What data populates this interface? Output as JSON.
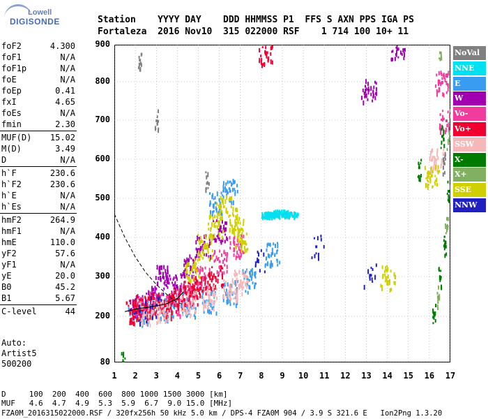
{
  "logo": {
    "line1": "Lowell",
    "line2": "DIGISONDE"
  },
  "header": {
    "labels": "Station    YYYY DAY    DDD HHMMSS P1  FFS S AXN PPS IGA PS",
    "values": "Fortaleza  2016 Nov10  315 022000 RSF    1 714 100 10+ 11"
  },
  "params": {
    "g1": [
      {
        "k": "foF2",
        "v": "4.300"
      },
      {
        "k": "foF1",
        "v": "N/A"
      },
      {
        "k": "foF1p",
        "v": "N/A"
      },
      {
        "k": "foE",
        "v": "N/A"
      },
      {
        "k": "foEp",
        "v": "0.41"
      },
      {
        "k": "fxI",
        "v": "4.65"
      },
      {
        "k": "foEs",
        "v": "N/A"
      },
      {
        "k": "fmin",
        "v": "2.30"
      }
    ],
    "g2": [
      {
        "k": "MUF(D)",
        "v": "15.02"
      },
      {
        "k": "M(D)",
        "v": "3.49"
      },
      {
        "k": "D",
        "v": "N/A"
      }
    ],
    "g3": [
      {
        "k": "h`F",
        "v": "230.6"
      },
      {
        "k": "h`F2",
        "v": "230.6"
      },
      {
        "k": "h`E",
        "v": "N/A"
      },
      {
        "k": "h`Es",
        "v": "N/A"
      }
    ],
    "g4": [
      {
        "k": "hmF2",
        "v": "264.9"
      },
      {
        "k": "hmF1",
        "v": "N/A"
      },
      {
        "k": "hmE",
        "v": "110.0"
      },
      {
        "k": "yF2",
        "v": "57.6"
      },
      {
        "k": "yF1",
        "v": "N/A"
      },
      {
        "k": "yE",
        "v": "20.0"
      },
      {
        "k": "B0",
        "v": "45.2"
      },
      {
        "k": "B1",
        "v": "5.67"
      }
    ],
    "g5": [
      {
        "k": "C-level",
        "v": "44"
      }
    ]
  },
  "auto": {
    "line1": "Auto:",
    "line2": "Artist5",
    "line3": "500200"
  },
  "legend": [
    {
      "label": "NoVal",
      "color": "#808080"
    },
    {
      "label": "NNE",
      "color": "#00e0f0"
    },
    {
      "label": "E",
      "color": "#3a9cf0"
    },
    {
      "label": "W",
      "color": "#a000b0"
    },
    {
      "label": "Vo-",
      "color": "#f03c9c"
    },
    {
      "label": "Vo+",
      "color": "#f00030"
    },
    {
      "label": "SSW",
      "color": "#f4b8b8"
    },
    {
      "label": "X-",
      "color": "#007a00"
    },
    {
      "label": "X+",
      "color": "#80b060"
    },
    {
      "label": "SSE",
      "color": "#d0d000"
    },
    {
      "label": "NNW",
      "color": "#2020c0"
    }
  ],
  "bottom": {
    "line1": "D     100  200  400  600  800 1000 1500 3000 [km]",
    "line2": "MUF   4.6  4.7  4.9  5.3  5.9  6.7  9.0 15.0 [MHz]",
    "line3": "FZA0M_2016315022000.RSF / 320fx256h 50 kHz 5.0 km / DPS-4 FZA0M 904 / 3.9 S 321.6 E   Ion2Png 1.3.20"
  },
  "chart_data": {
    "type": "scatter",
    "title": "",
    "xlabel": "",
    "ylabel": "",
    "xlim": [
      1,
      17
    ],
    "ylim": [
      80,
      900
    ],
    "x_ticks": [
      "1",
      "2",
      "3",
      "4",
      "5",
      "6",
      "7",
      "8",
      "9",
      "10",
      "11",
      "12",
      "13",
      "14",
      "15",
      "16",
      "17"
    ],
    "y_ticks": [
      "80",
      "200",
      "300",
      "400",
      "500",
      "600",
      "700",
      "800",
      "900"
    ],
    "grid": "dotted",
    "legend_position": "right",
    "series": [
      {
        "name": "NNE",
        "color": "#00e0f0",
        "points": [
          [
            8.5,
            462
          ],
          [
            9.0,
            462
          ],
          [
            9.4,
            462
          ],
          [
            8.9,
            466
          ],
          [
            8.3,
            460
          ]
        ]
      },
      {
        "name": "E",
        "color": "#3a9cf0",
        "points": [
          [
            2.0,
            210
          ],
          [
            2.5,
            212
          ],
          [
            3.5,
            220
          ],
          [
            4.5,
            232
          ],
          [
            5.5,
            240
          ],
          [
            6.5,
            262
          ],
          [
            7.4,
            292
          ],
          [
            8.5,
            360
          ],
          [
            5.8,
            490
          ],
          [
            6.5,
            520
          ]
        ]
      },
      {
        "name": "W",
        "color": "#a000b0",
        "points": [
          [
            2.0,
            230
          ],
          [
            2.8,
            250
          ],
          [
            3.3,
            300
          ],
          [
            3.8,
            280
          ],
          [
            4.5,
            330
          ],
          [
            5.2,
            380
          ],
          [
            6.0,
            420
          ],
          [
            14.5,
            890
          ],
          [
            13.1,
            780
          ]
        ]
      },
      {
        "name": "Vo-",
        "color": "#f03c9c",
        "points": [
          [
            2.2,
            220
          ],
          [
            3.0,
            240
          ],
          [
            3.8,
            235
          ],
          [
            4.5,
            260
          ],
          [
            5.2,
            300
          ],
          [
            6.0,
            340
          ],
          [
            6.8,
            380
          ],
          [
            16.8,
            700
          ],
          [
            16.6,
            800
          ]
        ]
      },
      {
        "name": "Vo+",
        "color": "#f00030",
        "points": [
          [
            1.9,
            215
          ],
          [
            2.3,
            225
          ],
          [
            2.8,
            230
          ],
          [
            3.4,
            228
          ],
          [
            4.0,
            245
          ],
          [
            4.6,
            262
          ],
          [
            5.1,
            272
          ],
          [
            5.8,
            300
          ],
          [
            8.2,
            880
          ]
        ]
      },
      {
        "name": "SSW",
        "color": "#f4b8b8",
        "points": [
          [
            2.5,
            210
          ],
          [
            3.3,
            215
          ],
          [
            4.5,
            235
          ],
          [
            5.5,
            250
          ],
          [
            6.5,
            270
          ],
          [
            7.0,
            290
          ],
          [
            16.3,
            600
          ]
        ]
      },
      {
        "name": "X-",
        "color": "#007a00",
        "points": [
          [
            1.4,
            82
          ],
          [
            16.2,
            210
          ],
          [
            16.5,
            300
          ],
          [
            16.7,
            380
          ],
          [
            16.9,
            520
          ],
          [
            16.6,
            660
          ],
          [
            15.5,
            580
          ]
        ]
      },
      {
        "name": "X+",
        "color": "#80b060",
        "points": [
          [
            16.4,
            250
          ],
          [
            16.8,
            430
          ],
          [
            16.9,
            650
          ],
          [
            16.5,
            880
          ]
        ]
      },
      {
        "name": "SSE",
        "color": "#d0d000",
        "points": [
          [
            4.7,
            320
          ],
          [
            5.3,
            380
          ],
          [
            5.8,
            430
          ],
          [
            6.2,
            480
          ],
          [
            6.8,
            450
          ],
          [
            7.0,
            400
          ],
          [
            14.0,
            300
          ],
          [
            16.1,
            560
          ]
        ]
      },
      {
        "name": "NNW",
        "color": "#2020c0",
        "points": [
          [
            2.2,
            215
          ],
          [
            3.0,
            230
          ],
          [
            10.6,
            378
          ],
          [
            13.2,
            305
          ],
          [
            7.8,
            340
          ]
        ]
      },
      {
        "name": "NoVal",
        "color": "#808080",
        "points": [
          [
            2.2,
            860
          ],
          [
            3.0,
            700
          ],
          [
            5.4,
            540
          ],
          [
            16.7,
            590
          ]
        ]
      }
    ],
    "profile_curve": {
      "x": [
        1.0,
        1.5,
        2.0,
        2.5,
        3.0,
        3.6,
        4.0,
        4.3
      ],
      "y": [
        460,
        400,
        350,
        310,
        280,
        250,
        235,
        230
      ]
    },
    "trace_curve": {
      "x": [
        1.5,
        2.0,
        2.5,
        3.0,
        3.5,
        4.0,
        4.3
      ],
      "y": [
        212,
        218,
        222,
        226,
        232,
        245,
        262
      ]
    }
  }
}
